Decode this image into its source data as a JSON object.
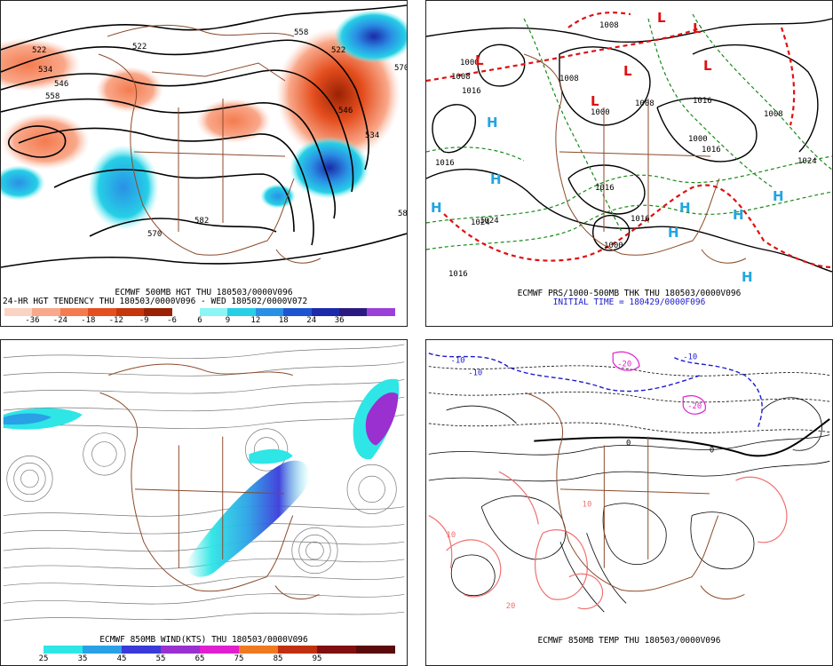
{
  "panels": [
    {
      "id": "p1",
      "caption_line1": "ECMWF 500MB HGT THU 180503/0000V096",
      "caption_line2": "24-HR HGT TENDENCY THU 180503/0000V096 - WED 180502/0000V072",
      "colorbar_colors": [
        "#fbd3c3",
        "#f9a88a",
        "#f47b4f",
        "#e54e1e",
        "#c5360c",
        "#9a2204",
        "#ffffff",
        "#8cf5f5",
        "#26cfe6",
        "#2a90e5",
        "#1f54d1",
        "#1b2aa9",
        "#2a1a80",
        "#9a40d9"
      ],
      "colorbar_ticks": [
        "-36",
        "-24",
        "-18",
        "-12",
        "-9",
        "-6",
        "6",
        "9",
        "12",
        "18",
        "24",
        "36"
      ],
      "contour_labels": [
        "522",
        "534",
        "546",
        "558",
        "570",
        "582",
        "522",
        "546",
        "534",
        "522",
        "558",
        "570",
        "582"
      ]
    },
    {
      "id": "p2",
      "caption_line1": "ECMWF PRS/1000-500MB THK THU 180503/0000V096",
      "caption_line2": "INITIAL TIME = 180429/0000F096",
      "pressure_labels": [
        "1000",
        "1008",
        "1016",
        "1024",
        "1008",
        "1016",
        "1000",
        "1008",
        "1016",
        "1000",
        "1008",
        "1016",
        "1024",
        "1016",
        "1000",
        "1016",
        "1016",
        "1008",
        "1024"
      ],
      "highs": [
        "H",
        "H",
        "H",
        "H",
        "H",
        "H",
        "H",
        "H"
      ],
      "lows": [
        "L",
        "L",
        "L",
        "L",
        "L",
        "L"
      ]
    },
    {
      "id": "p3",
      "caption_line1": "ECMWF 850MB WIND(KTS) THU 180503/0000V096",
      "colorbar_colors": [
        "#ffffff",
        "#2ee6e6",
        "#2aa0e6",
        "#3a3ad9",
        "#9a30d0",
        "#e020d0",
        "#f07a20",
        "#c03010",
        "#801010",
        "#5a0a0a"
      ],
      "colorbar_ticks": [
        "25",
        "35",
        "45",
        "55",
        "65",
        "75",
        "85",
        "95"
      ]
    },
    {
      "id": "p4",
      "caption_line1": "ECMWF 850MB TEMP THU 180503/0000V096",
      "temp_labels": [
        "-10",
        "-10",
        "-20",
        "-20",
        "-10",
        "0",
        "0",
        "10",
        "10",
        "20"
      ]
    }
  ]
}
